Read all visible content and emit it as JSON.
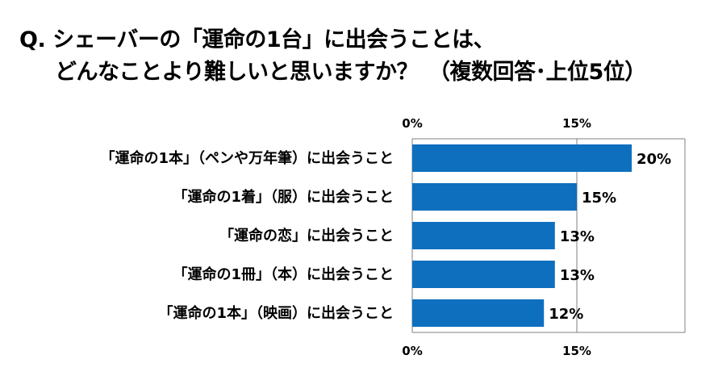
{
  "title": {
    "line1": "Q. シェーバーの「運命の1台」に出会うことは、",
    "line2": "どんなことより難しいと思いますか？　（複数回答･上位5位）"
  },
  "chart_data": {
    "type": "bar",
    "orientation": "horizontal",
    "categories": [
      "「運命の1本」（ペンや万年筆）に出会うこと",
      "「運命の1着」（服）に出会うこと",
      "「運命の恋」に出会うこと",
      "「運命の1冊」（本）に出会うこと",
      "「運命の1本」（映画）に出会うこと"
    ],
    "values": [
      20,
      15,
      13,
      13,
      12
    ],
    "value_labels": [
      "20%",
      "15%",
      "13%",
      "13%",
      "12%"
    ],
    "ticks": [
      0,
      15
    ],
    "tick_labels": [
      "0%",
      "15%"
    ],
    "xlim": [
      0,
      25
    ],
    "grid": true,
    "bar_color": "#0f6fbf",
    "axis_color": "#7f7f7f"
  }
}
